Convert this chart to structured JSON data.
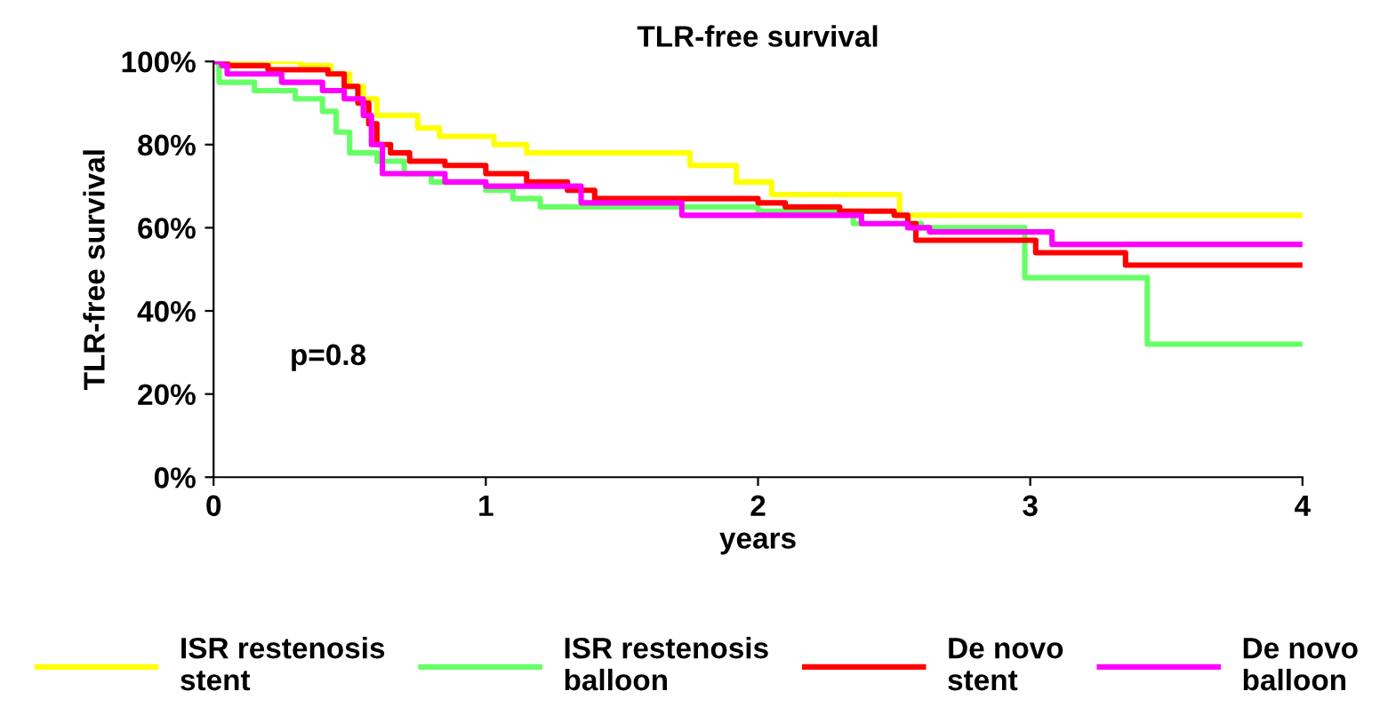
{
  "chart_data": {
    "type": "step",
    "title": "TLR-free survival",
    "xlabel": "years",
    "ylabel": "TLR-free survival",
    "annotations": [
      "p=0.8"
    ],
    "xlim": [
      0,
      4
    ],
    "xticks": [
      0,
      1,
      2,
      3,
      4
    ],
    "ylim": [
      0,
      100
    ],
    "yticks": [
      {
        "value": 0,
        "label": "0%"
      },
      {
        "value": 20,
        "label": "20%"
      },
      {
        "value": 40,
        "label": "40%"
      },
      {
        "value": 60,
        "label": "60%"
      },
      {
        "value": 80,
        "label": "80%"
      },
      {
        "value": 100,
        "label": "100%"
      }
    ],
    "grid": false,
    "legend": "bottom",
    "line_style": "solid",
    "marker": "none",
    "series": [
      {
        "name": "ISR restenosis\nstent",
        "color": "#ffff00",
        "x": [
          0,
          0.32,
          0.43,
          0.5,
          0.55,
          0.6,
          0.75,
          0.83,
          1.03,
          1.15,
          1.75,
          1.8,
          1.92,
          2.05,
          2.52,
          4
        ],
        "values": [
          100,
          99,
          97,
          94,
          91,
          87,
          84,
          82,
          80,
          78,
          75,
          75,
          71,
          68,
          63,
          63
        ]
      },
      {
        "name": "ISR restenosis\nballoon",
        "color": "#66ff66",
        "x": [
          0,
          0.02,
          0.15,
          0.3,
          0.4,
          0.45,
          0.5,
          0.6,
          0.7,
          0.8,
          1.0,
          1.1,
          1.2,
          2.0,
          2.35,
          2.6,
          2.98,
          3.43,
          4
        ],
        "values": [
          100,
          95,
          93,
          91,
          88,
          83,
          78,
          76,
          73,
          71,
          69,
          67,
          65,
          64,
          61,
          60,
          48,
          32,
          32
        ]
      },
      {
        "name": "De novo\nstent",
        "color": "#ff0000",
        "x": [
          0,
          0.05,
          0.2,
          0.42,
          0.48,
          0.53,
          0.57,
          0.6,
          0.65,
          0.72,
          0.85,
          1.0,
          1.15,
          1.3,
          1.4,
          2.0,
          2.1,
          2.3,
          2.5,
          2.55,
          2.58,
          3.02,
          3.35,
          4
        ],
        "values": [
          100,
          99,
          98,
          97,
          94,
          90,
          85,
          80,
          78,
          76,
          75,
          73,
          71,
          69,
          67,
          66,
          65,
          64,
          63,
          61,
          57,
          54,
          51,
          51
        ]
      },
      {
        "name": "De novo\nballoon",
        "color": "#ff00ff",
        "x": [
          0,
          0.03,
          0.05,
          0.25,
          0.4,
          0.48,
          0.55,
          0.58,
          0.62,
          0.85,
          1.0,
          1.35,
          1.72,
          2.38,
          2.55,
          2.63,
          3.08,
          4
        ],
        "values": [
          100,
          99,
          97,
          95,
          93,
          91,
          87,
          80,
          73,
          71,
          70,
          66,
          63,
          61,
          60,
          59,
          56,
          56
        ]
      }
    ]
  }
}
